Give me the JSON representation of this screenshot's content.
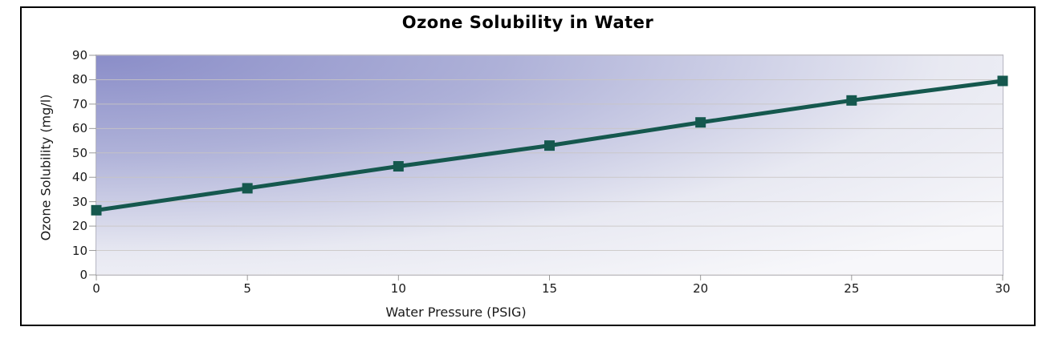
{
  "chart_data": {
    "type": "line",
    "title": "Ozone Solubility in Water",
    "xlabel": "Water Pressure (PSIG)",
    "ylabel": "Ozone Solubility (mg/l)",
    "x": [
      0,
      5,
      10,
      15,
      20,
      25,
      30
    ],
    "y": [
      26.5,
      35.5,
      44.5,
      53,
      62.5,
      71.5,
      79.5
    ],
    "xlim": [
      0,
      30
    ],
    "ylim": [
      0,
      90
    ],
    "x_ticks": [
      0,
      5,
      10,
      15,
      20,
      25,
      30
    ],
    "y_ticks": [
      0,
      10,
      20,
      30,
      40,
      50,
      60,
      70,
      80,
      90
    ],
    "grid": "horizontal",
    "legend": "none",
    "marker": "square",
    "series_color": "#15584e",
    "plot_background": {
      "top_left": "#8a8dc8",
      "bottom_right": "#f7f7fa"
    },
    "frame_border_color": "#000000"
  }
}
